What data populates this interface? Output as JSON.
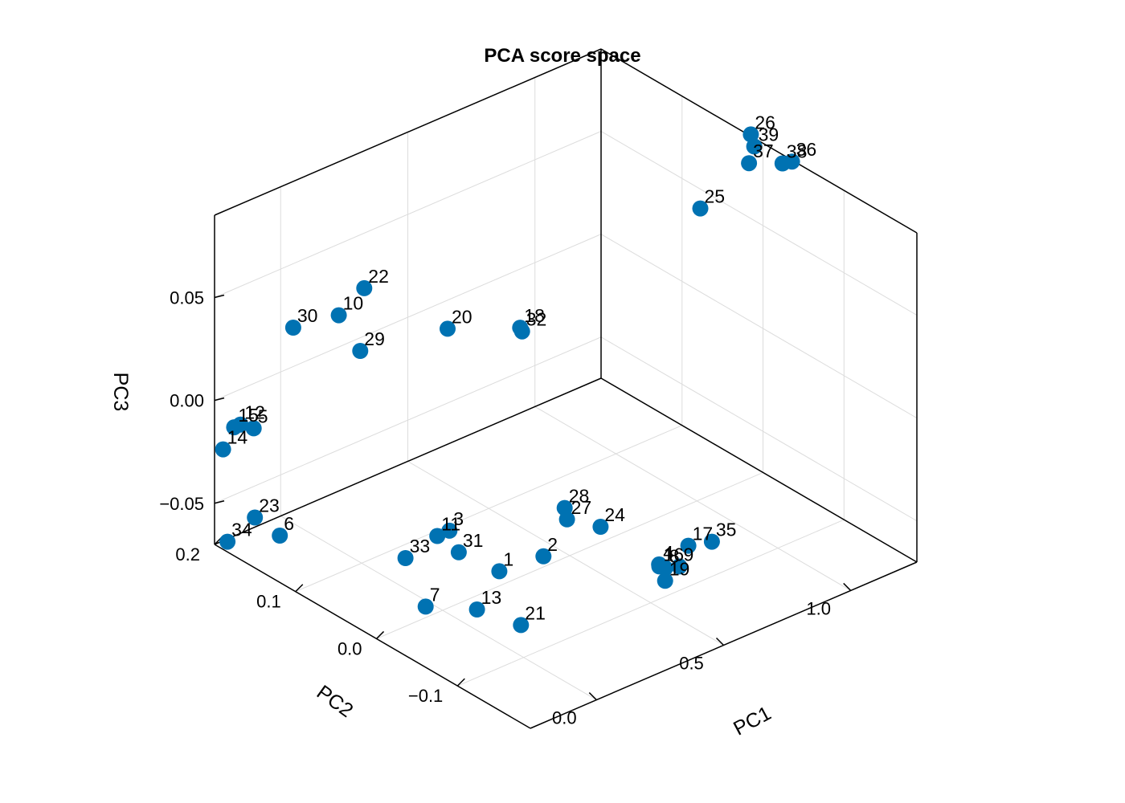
{
  "chart_data": {
    "type": "scatter",
    "title": "PCA score space",
    "xlabel": "PC1",
    "ylabel": "PC2",
    "zlabel": "PC3",
    "x_ticks": [
      {
        "value": 0.0,
        "label": "0.0"
      },
      {
        "value": 0.5,
        "label": "0.5"
      },
      {
        "value": 1.0,
        "label": "1.0"
      }
    ],
    "y_ticks": [
      {
        "value": -0.1,
        "label": "−0.1"
      },
      {
        "value": 0.0,
        "label": "0.0"
      },
      {
        "value": 0.1,
        "label": "0.1"
      },
      {
        "value": 0.2,
        "label": "0.2"
      }
    ],
    "z_ticks": [
      {
        "value": -0.05,
        "label": "−0.05"
      },
      {
        "value": 0.0,
        "label": "0.00"
      },
      {
        "value": 0.05,
        "label": "0.05"
      }
    ],
    "xlim": [
      -0.26,
      1.26
    ],
    "ylim": [
      -0.19,
      0.2
    ],
    "zlim": [
      -0.07,
      0.09
    ],
    "grid": true,
    "marker_color": "#0072b2",
    "points": [
      {
        "label": "1",
        "x": 0.0,
        "y": -0.07,
        "z": -0.035
      },
      {
        "label": "2",
        "x": 0.11,
        "y": -0.09,
        "z": -0.029
      },
      {
        "label": "3",
        "x": -0.075,
        "y": -0.032,
        "z": -0.02
      },
      {
        "label": "4",
        "x": 0.38,
        "y": -0.148,
        "z": -0.034
      },
      {
        "label": "5",
        "x": -0.24,
        "y": 0.158,
        "z": -0.005
      },
      {
        "label": "6",
        "x": -0.15,
        "y": 0.154,
        "z": -0.061
      },
      {
        "label": "7",
        "x": 0.0,
        "y": 0.021,
        "z": -0.073
      },
      {
        "label": "8",
        "x": 0.42,
        "y": -0.143,
        "z": -0.039
      },
      {
        "label": "9",
        "x": 0.498,
        "y": -0.136,
        "z": -0.044
      },
      {
        "label": "10",
        "x": -0.16,
        "y": 0.078,
        "z": 0.064
      },
      {
        "label": "11",
        "x": -0.091,
        "y": -0.022,
        "z": -0.024
      },
      {
        "label": "12",
        "x": -0.279,
        "y": 0.162,
        "z": -0.002
      },
      {
        "label": "13",
        "x": 0.113,
        "y": -0.007,
        "z": -0.074
      },
      {
        "label": "14",
        "x": -0.271,
        "y": 0.186,
        "z": -0.02
      },
      {
        "label": "15",
        "x": -0.288,
        "y": 0.167,
        "z": -0.004
      },
      {
        "label": "16",
        "x": 0.397,
        "y": -0.143,
        "z": -0.037
      },
      {
        "label": "17",
        "x": 0.495,
        "y": -0.148,
        "z": -0.031
      },
      {
        "label": "18",
        "x": 0.05,
        "y": -0.08,
        "z": 0.083
      },
      {
        "label": "19",
        "x": 0.41,
        "y": -0.146,
        "z": -0.044
      },
      {
        "label": "20",
        "x": 0.01,
        "y": -0.003,
        "z": 0.067
      },
      {
        "label": "21",
        "x": 0.184,
        "y": -0.039,
        "z": -0.078
      },
      {
        "label": "22",
        "x": -0.133,
        "y": 0.055,
        "z": 0.081
      },
      {
        "label": "23",
        "x": -0.2,
        "y": 0.169,
        "z": -0.053
      },
      {
        "label": "24",
        "x": 0.29,
        "y": -0.104,
        "z": -0.021
      },
      {
        "label": "25",
        "x": 0.921,
        "y": -0.029,
        "z": 0.083
      },
      {
        "label": "26",
        "x": 1.091,
        "y": -0.038,
        "z": 0.112
      },
      {
        "label": "27",
        "x": 0.091,
        "y": -0.125,
        "z": -0.002
      },
      {
        "label": "28",
        "x": 0.066,
        "y": -0.13,
        "z": 0.006
      },
      {
        "label": "29",
        "x": -0.066,
        "y": 0.081,
        "z": 0.041
      },
      {
        "label": "30",
        "x": -0.199,
        "y": 0.122,
        "z": 0.05
      },
      {
        "label": "31",
        "x": 0.054,
        "y": -0.003,
        "z": -0.044
      },
      {
        "label": "32",
        "x": 0.064,
        "y": -0.078,
        "z": 0.08
      },
      {
        "label": "33",
        "x": -0.009,
        "y": 0.043,
        "z": -0.054
      },
      {
        "label": "34",
        "x": -0.276,
        "y": 0.179,
        "z": -0.063
      },
      {
        "label": "35",
        "x": 0.508,
        "y": -0.173,
        "z": -0.024
      },
      {
        "label": "36",
        "x": 0.855,
        "y": -0.163,
        "z": 0.14
      },
      {
        "label": "37",
        "x": 1.071,
        "y": -0.042,
        "z": 0.1
      },
      {
        "label": "38",
        "x": 1.05,
        "y": -0.09,
        "z": 0.112
      },
      {
        "label": "39",
        "x": 1.06,
        "y": -0.052,
        "z": 0.111
      }
    ]
  }
}
